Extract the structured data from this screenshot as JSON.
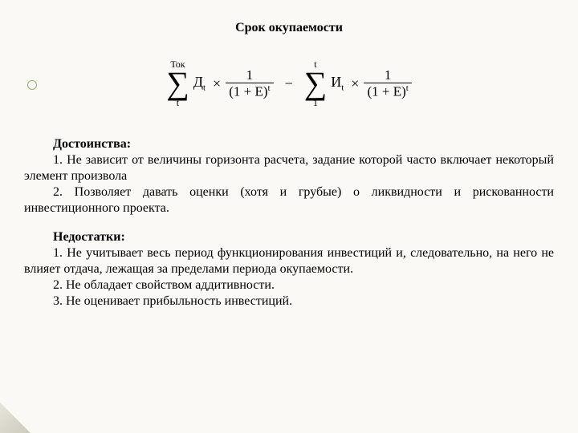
{
  "title": "Срок окупаемости",
  "formula": {
    "sum1_upper": "Ток",
    "sum1_lower": "t",
    "term1_base": "Д",
    "term1_sub": "t",
    "times": "×",
    "frac_num": "1",
    "frac_den_open": "(1 + E)",
    "frac_den_exp": "t",
    "minus": "−",
    "sum2_upper": "t",
    "sum2_lower": "1",
    "term2_base": "И",
    "term2_sub": "t"
  },
  "advantages": {
    "heading": "Достоинства:",
    "items": [
      "1. Не зависит от величины горизонта расчета, задание которой часто включает некоторый элемент произвола",
      "2. Позволяет давать оценки (хотя и грубые) о ликвидности и рискованности инвестиционного проекта."
    ]
  },
  "disadvantages": {
    "heading": "Недостатки:",
    "items": [
      "1. Не учитывает весь период функционирования инвестиций и, следовательно, на него не влияет отдача, лежащая за пределами периода окупаемости.",
      "2. Не обладает свойством аддитивности.",
      "3.  Не оценивает прибыльность инвестиций."
    ]
  },
  "colors": {
    "background": "#faf9f6",
    "text": "#000000",
    "bullet_border": "#8fb36c"
  },
  "fonts": {
    "body": "Times New Roman",
    "title_size_pt": 16,
    "body_size_pt": 16,
    "formula_size_pt": 18
  }
}
